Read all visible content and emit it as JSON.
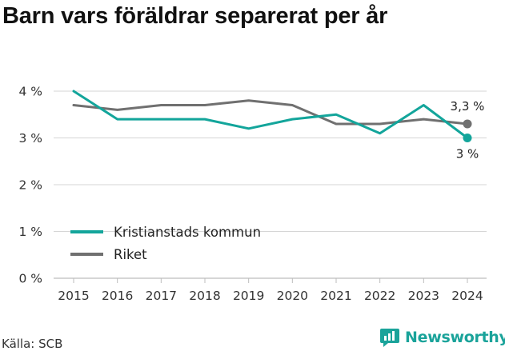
{
  "title": "Barn vars föräldrar separerat per år",
  "source": "Källa: SCB",
  "brand": {
    "name": "Newsworthy",
    "icon": "newsworthy-logo-icon",
    "color": "#1aa39a"
  },
  "chart_data": {
    "type": "line",
    "title": "Barn vars föräldrar separerat per år",
    "x": [
      2015,
      2016,
      2017,
      2018,
      2019,
      2020,
      2021,
      2022,
      2023,
      2024
    ],
    "ylim": [
      0,
      4
    ],
    "yticks": [
      0,
      1,
      2,
      3,
      4
    ],
    "ytick_labels": [
      "0 %",
      "1 %",
      "2 %",
      "3 %",
      "4 %"
    ],
    "grid": true,
    "legend_position": "left",
    "series": [
      {
        "name": "Kristianstads kommun",
        "color": "#13a59b",
        "values": [
          4.0,
          3.4,
          3.4,
          3.4,
          3.2,
          3.4,
          3.5,
          3.1,
          3.7,
          3.0
        ],
        "end_label": "3 %"
      },
      {
        "name": "Riket",
        "color": "#707070",
        "values": [
          3.7,
          3.6,
          3.7,
          3.7,
          3.8,
          3.7,
          3.3,
          3.3,
          3.4,
          3.3
        ],
        "end_label": "3,3 %"
      }
    ]
  }
}
